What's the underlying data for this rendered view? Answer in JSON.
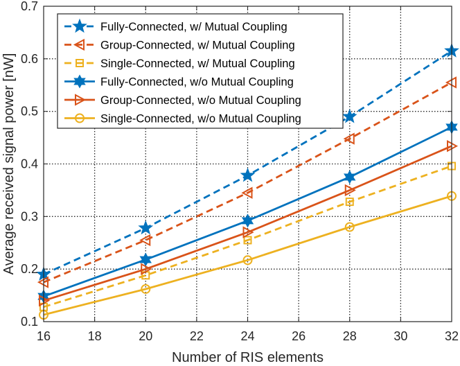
{
  "chart_data": {
    "type": "line",
    "title": "",
    "xlabel": "Number of RIS elements",
    "ylabel": "Average received signal power [nW]",
    "xlim": [
      16,
      32
    ],
    "ylim": [
      0.1,
      0.7
    ],
    "xticks": [
      16,
      18,
      20,
      22,
      24,
      26,
      28,
      30,
      32
    ],
    "xtick_labels": [
      "16",
      "18",
      "20",
      "22",
      "24",
      "26",
      "28",
      "30",
      "32"
    ],
    "yticks": [
      0.1,
      0.2,
      0.3,
      0.4,
      0.5,
      0.6,
      0.7
    ],
    "ytick_labels": [
      "0.1",
      "0.2",
      "0.3",
      "0.4",
      "0.5",
      "0.6",
      "0.7"
    ],
    "grid": true,
    "legend_position": "top-left",
    "x": [
      16,
      20,
      24,
      28,
      32
    ],
    "series": [
      {
        "name": "Fully-Connected, w/ Mutual Coupling",
        "values": [
          0.19,
          0.278,
          0.378,
          0.49,
          0.615
        ],
        "color": "#0072BD",
        "line": "dashed",
        "marker": "star"
      },
      {
        "name": "Group-Connected, w/ Mutual Coupling",
        "values": [
          0.175,
          0.255,
          0.345,
          0.448,
          0.555
        ],
        "color": "#D95319",
        "line": "dashed",
        "marker": "triangle-left"
      },
      {
        "name": "Single-Connected, w/ Mutual Coupling",
        "values": [
          0.128,
          0.188,
          0.255,
          0.328,
          0.396
        ],
        "color": "#EDB120",
        "line": "dashed",
        "marker": "square"
      },
      {
        "name": "Fully-Connected, w/o Mutual Coupling",
        "values": [
          0.148,
          0.218,
          0.292,
          0.375,
          0.47
        ],
        "color": "#0072BD",
        "line": "solid",
        "marker": "hexagram"
      },
      {
        "name": "Group-Connected, w/o Mutual Coupling",
        "values": [
          0.14,
          0.2,
          0.27,
          0.35,
          0.434
        ],
        "color": "#D95319",
        "line": "solid",
        "marker": "triangle-right"
      },
      {
        "name": "Single-Connected, w/o Mutual Coupling",
        "values": [
          0.113,
          0.162,
          0.217,
          0.28,
          0.339
        ],
        "color": "#EDB120",
        "line": "solid",
        "marker": "circle"
      }
    ]
  }
}
